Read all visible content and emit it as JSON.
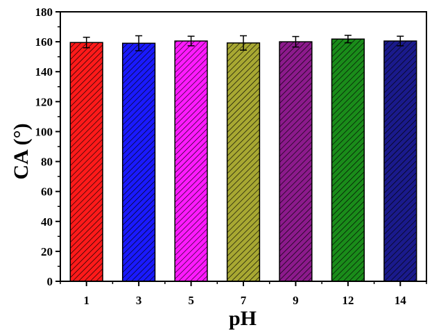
{
  "chart_data": {
    "type": "bar",
    "xlabel": "pH",
    "ylabel": "CA (°)",
    "categories": [
      "1",
      "3",
      "5",
      "7",
      "9",
      "12",
      "14"
    ],
    "values": [
      159.5,
      159.0,
      160.5,
      159.2,
      160.0,
      161.8,
      160.5
    ],
    "errors": [
      3.5,
      5.0,
      3.2,
      4.8,
      3.5,
      2.5,
      3.2
    ],
    "colors": [
      "#ff1a1a",
      "#1a1aff",
      "#ff1aff",
      "#a8a832",
      "#8c1a8c",
      "#1a8c1a",
      "#1a1a8c"
    ],
    "ylim": [
      0,
      180
    ],
    "yticks": [
      0,
      20,
      40,
      60,
      80,
      100,
      120,
      140,
      160,
      180
    ],
    "grid": false,
    "hatch": "diagonal"
  }
}
